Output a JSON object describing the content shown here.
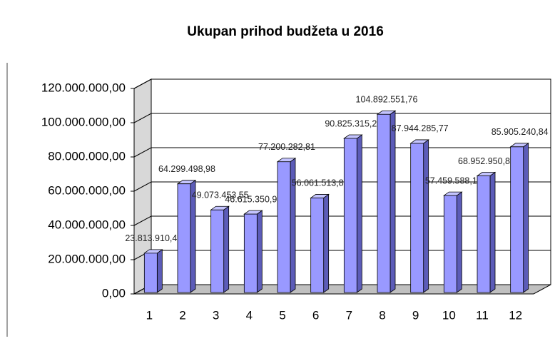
{
  "chart_data": {
    "type": "bar3d",
    "title": "Ukupan prihod  budžeta u 2016",
    "categories": [
      "1",
      "2",
      "3",
      "4",
      "5",
      "6",
      "7",
      "8",
      "9",
      "10",
      "11",
      "12"
    ],
    "values": [
      23813910.41,
      64299498.98,
      49073453.55,
      46615350.94,
      77200282.81,
      56061513.8,
      90825315.24,
      104892551.76,
      87944285.77,
      57459588.11,
      68952950.88,
      85905240.84
    ],
    "value_labels": [
      "23.813.910,41",
      "64.299.498,98",
      "49.073.453,55",
      "46.615.350,94",
      "77.200.282,81",
      "56.061.513,80",
      "90.825.315,24",
      "104.892.551,76",
      "87.944.285,77",
      "57.459.588,11",
      "68.952.950,88",
      "85.905.240,84"
    ],
    "color": "#9999ff",
    "ylim": [
      0,
      120000000
    ],
    "yticks": [
      {
        "value": 0,
        "label": "0,00"
      },
      {
        "value": 20000000,
        "label": "20.000.000,00"
      },
      {
        "value": 40000000,
        "label": "40.000.000,00"
      },
      {
        "value": 60000000,
        "label": "60.000.000,00"
      },
      {
        "value": 80000000,
        "label": "80.000.000,00"
      },
      {
        "value": 100000000,
        "label": "100.000.000,00"
      },
      {
        "value": 120000000,
        "label": "120.000.000,00"
      }
    ],
    "grid": true
  }
}
